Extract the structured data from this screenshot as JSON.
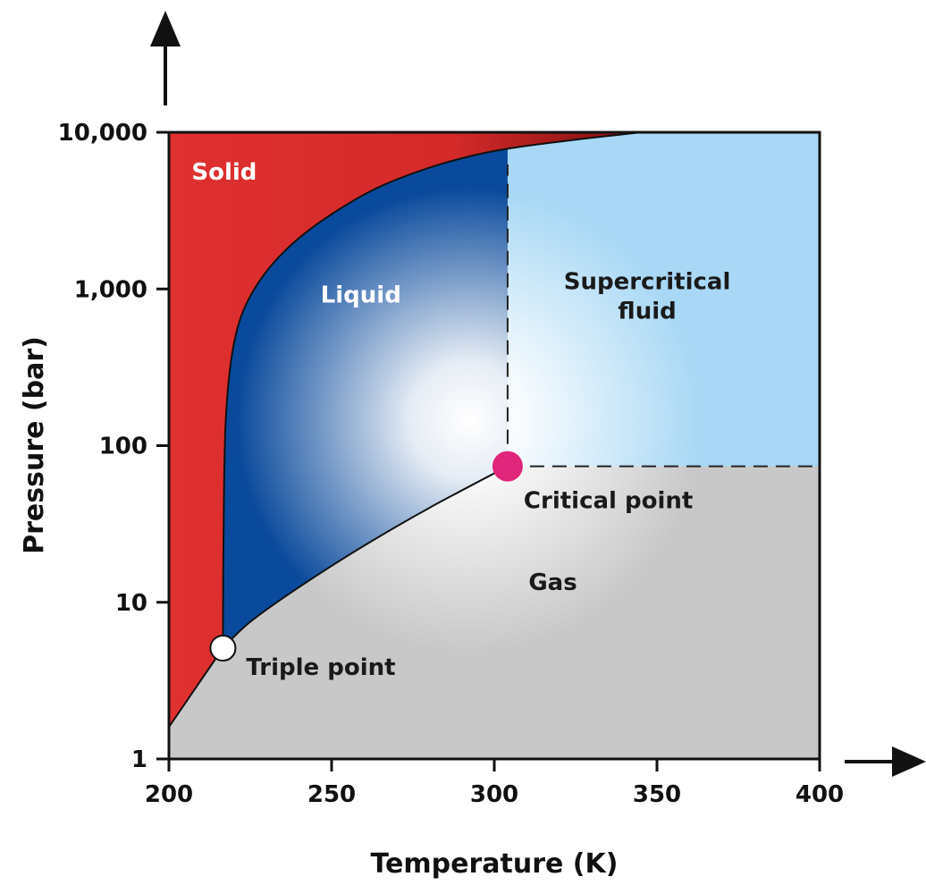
{
  "chart_data": {
    "type": "area",
    "title": "",
    "xlabel": "Temperature (K)",
    "ylabel": "Pressure (bar)",
    "xlim": [
      200,
      400
    ],
    "ylim": [
      1,
      10000
    ],
    "yscale": "log",
    "x_ticks": [
      {
        "value": 200,
        "label": "200"
      },
      {
        "value": 250,
        "label": "250"
      },
      {
        "value": 300,
        "label": "300"
      },
      {
        "value": 350,
        "label": "350"
      },
      {
        "value": 400,
        "label": "400"
      }
    ],
    "y_ticks": [
      {
        "value": 1,
        "label": "1"
      },
      {
        "value": 10,
        "label": "10"
      },
      {
        "value": 100,
        "label": "100"
      },
      {
        "value": 1000,
        "label": "1,000"
      },
      {
        "value": 10000,
        "label": "10,000"
      }
    ],
    "regions": [
      {
        "label": "Solid",
        "color": "#e03030",
        "at": [
          217,
          5000
        ],
        "label_color": "#ffffff"
      },
      {
        "label": "Liquid",
        "color": "#0a4a9c",
        "at": [
          259,
          820
        ],
        "label_color": "#ffffff"
      },
      {
        "label": "Supercritical\nfluid",
        "color": "#a8d8f5",
        "at": [
          347,
          1000
        ],
        "label_color": "#1a1a1a"
      },
      {
        "label": "Gas",
        "color": "#c8c8c8",
        "at": [
          318,
          12
        ],
        "label_color": "#1a1a1a"
      }
    ],
    "points": [
      {
        "label": "Triple point",
        "x": 216.6,
        "y": 5.1,
        "color": "#ffffff"
      },
      {
        "label": "Critical point",
        "x": 304.1,
        "y": 73.8,
        "color": "#e0267a"
      }
    ],
    "curves": {
      "sublimation": [
        [
          200,
          1.6
        ],
        [
          216.6,
          5.1
        ]
      ],
      "vaporization": [
        [
          216.6,
          5.1
        ],
        [
          225,
          7.5
        ],
        [
          240,
          12.5
        ],
        [
          260,
          23
        ],
        [
          280,
          40
        ],
        [
          304.1,
          73.8
        ]
      ],
      "melting": [
        [
          216.6,
          5.1
        ],
        [
          216.8,
          30
        ],
        [
          217.5,
          150
        ],
        [
          220,
          450
        ],
        [
          225,
          900
        ],
        [
          235,
          1700
        ],
        [
          250,
          3000
        ],
        [
          270,
          5000
        ],
        [
          300,
          7600
        ],
        [
          345,
          10000
        ]
      ]
    }
  }
}
